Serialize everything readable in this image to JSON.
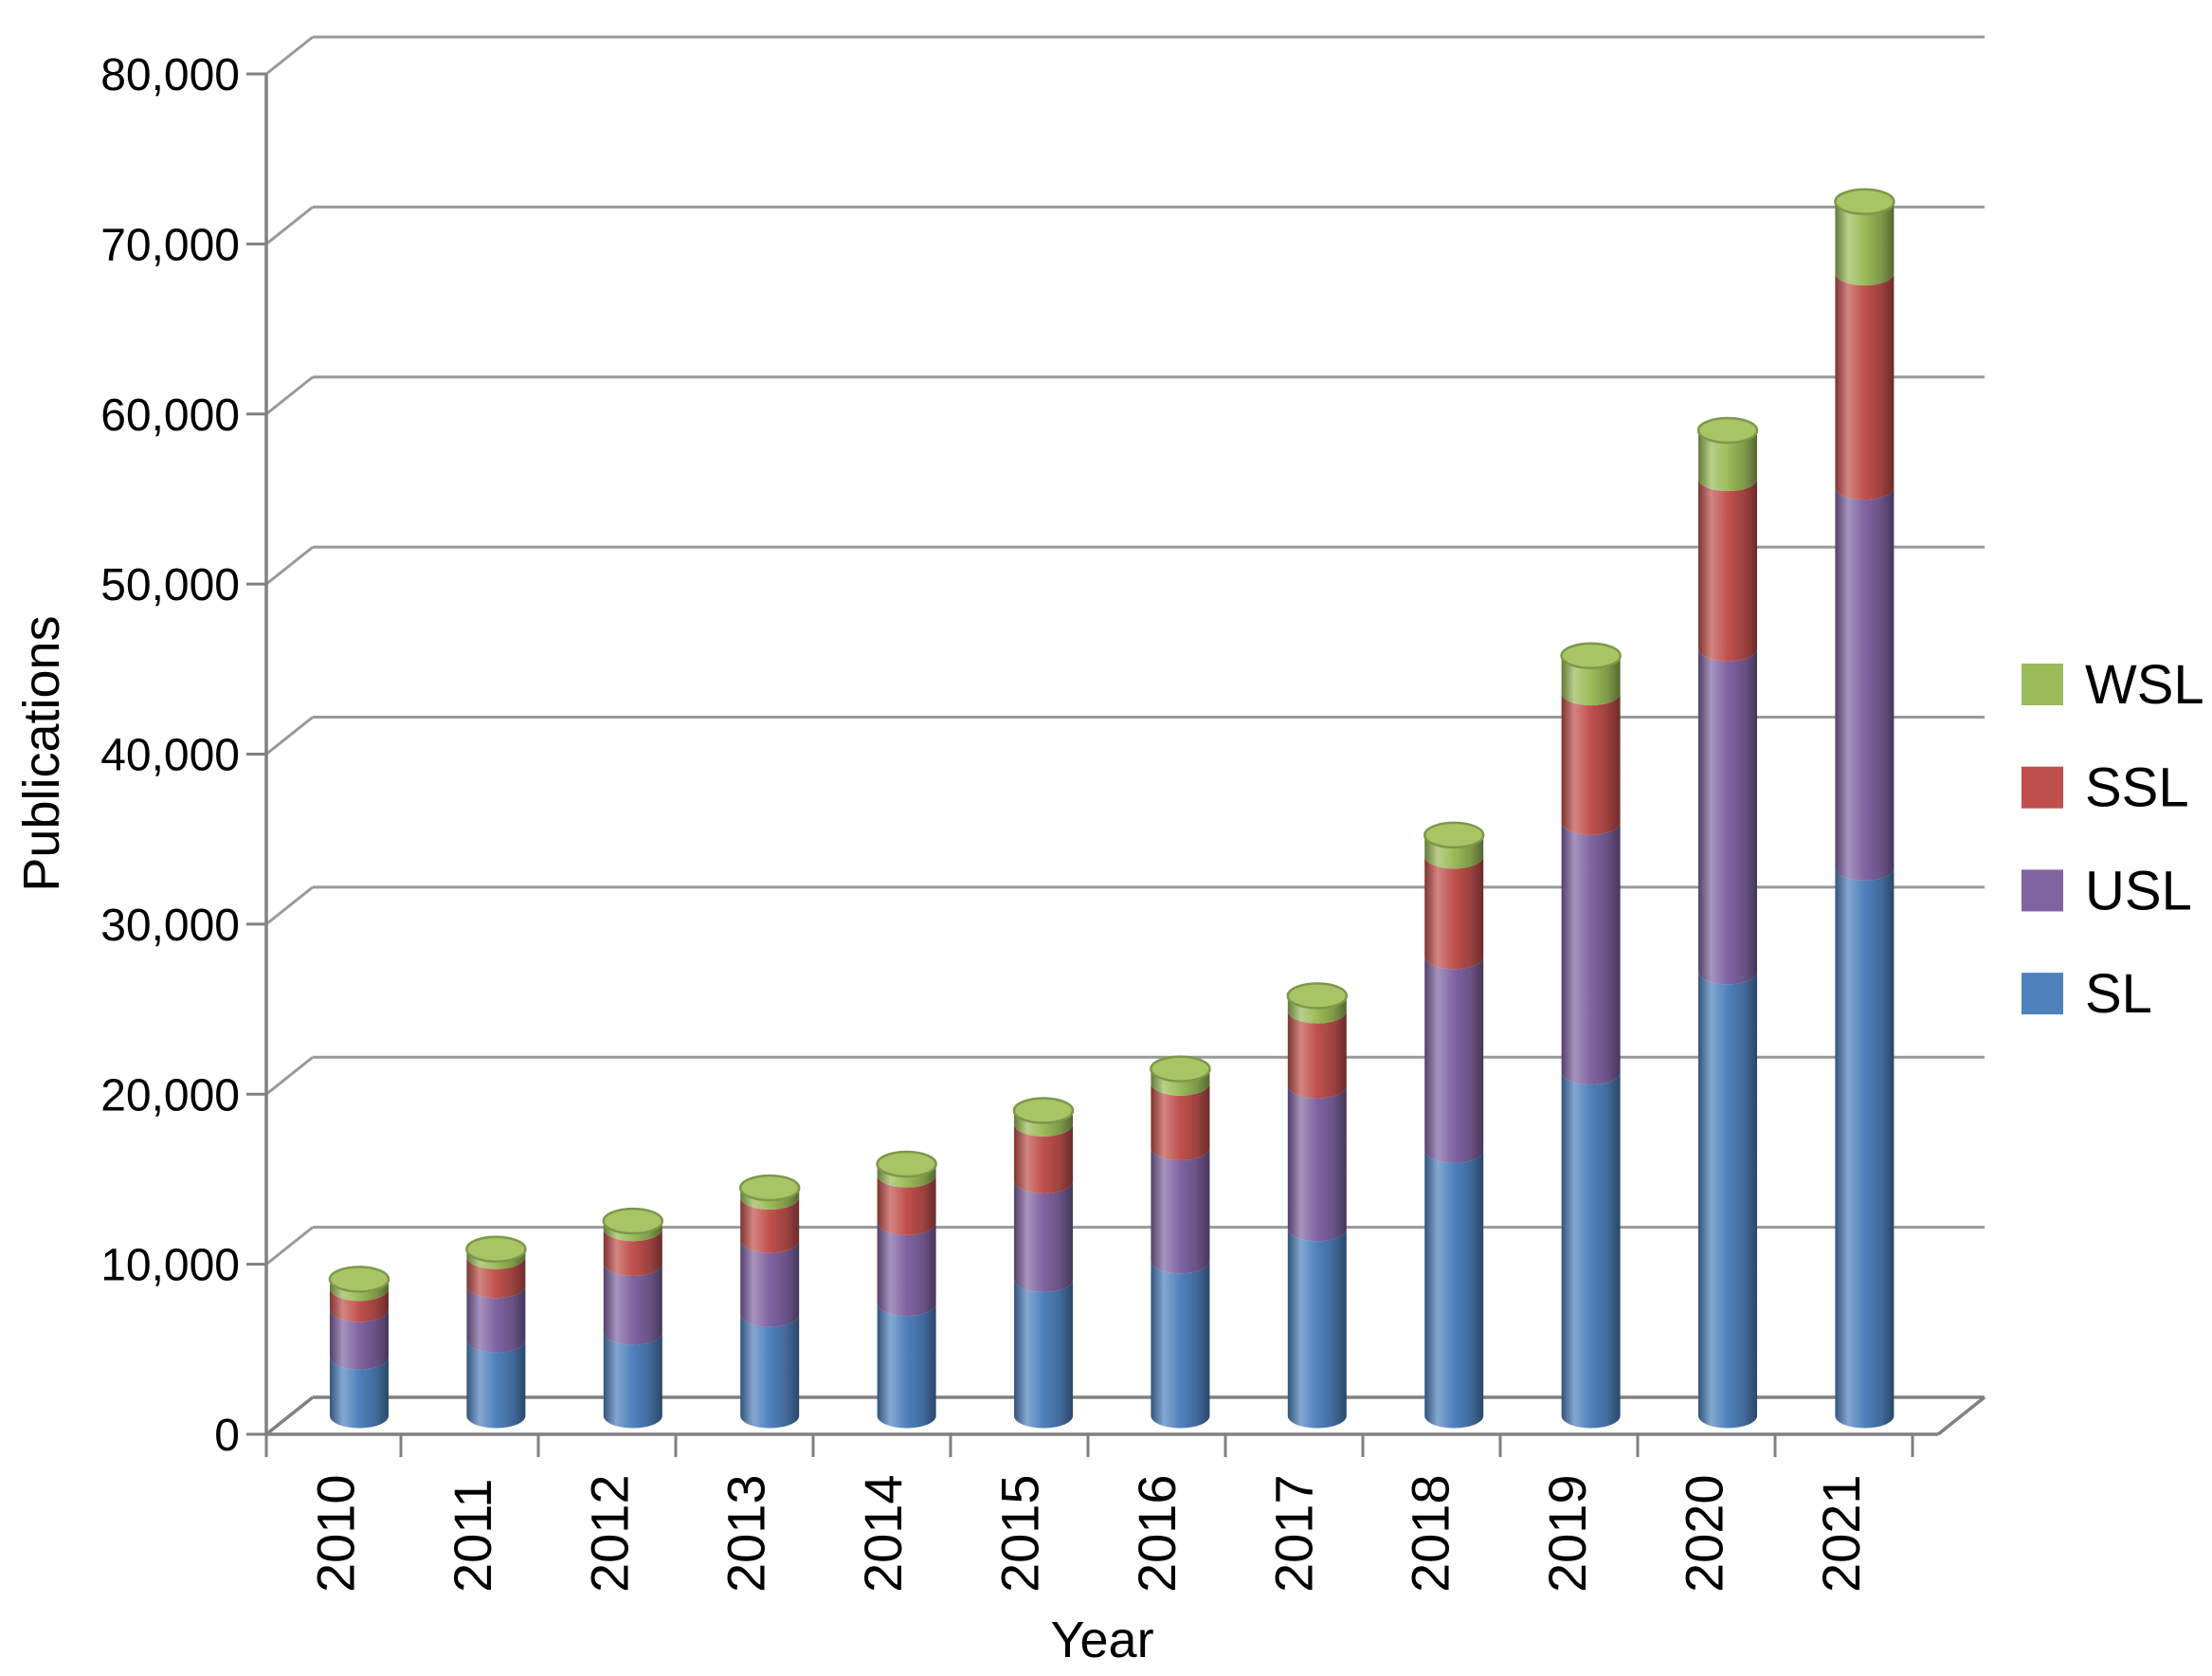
{
  "chart_data": {
    "type": "bar",
    "variant": "3d-stacked-cylinder",
    "title": "",
    "xlabel": "Year",
    "ylabel": "Publications",
    "categories": [
      "2010",
      "2011",
      "2012",
      "2013",
      "2014",
      "2015",
      "2016",
      "2017",
      "2018",
      "2019",
      "2020",
      "2021"
    ],
    "series": [
      {
        "name": "SL",
        "color": "#4F81BD",
        "values": [
          3450,
          4450,
          4900,
          5950,
          6600,
          8000,
          9100,
          11000,
          15600,
          20200,
          26100,
          32200
        ]
      },
      {
        "name": "USL",
        "color": "#8064A2",
        "values": [
          2800,
          3200,
          4050,
          4350,
          4750,
          5800,
          6650,
          8400,
          11400,
          14700,
          19000,
          22400
        ]
      },
      {
        "name": "SSL",
        "color": "#C0504D",
        "values": [
          1230,
          1700,
          2050,
          2550,
          2800,
          3350,
          3800,
          4400,
          5900,
          7600,
          10000,
          12600
        ]
      },
      {
        "name": "WSL",
        "color": "#9BBB59",
        "values": [
          550,
          450,
          450,
          550,
          650,
          800,
          850,
          900,
          1250,
          2200,
          2850,
          4200
        ]
      }
    ],
    "totals": [
      8030,
      9800,
      11450,
      13400,
      14800,
      17950,
      20400,
      24700,
      34150,
      44700,
      57950,
      71400
    ],
    "ylim": [
      0,
      80000
    ],
    "ytick_step": 10000,
    "ytick_labels": [
      "0",
      "10,000",
      "20,000",
      "30,000",
      "40,000",
      "50,000",
      "60,000",
      "70,000",
      "80,000"
    ],
    "grid": true,
    "legend": {
      "position": "right",
      "entries": [
        {
          "label": "WSL",
          "color": "#9BBB59"
        },
        {
          "label": "SSL",
          "color": "#C0504D"
        },
        {
          "label": "USL",
          "color": "#8064A2"
        },
        {
          "label": "SL",
          "color": "#4F81BD"
        }
      ]
    },
    "colors": {
      "gridline": "#999999",
      "axis": "#808080",
      "background": "#FFFFFF",
      "cylinder_cap_fill": "#A8C566",
      "cylinder_cap_stroke": "#7E9749"
    }
  }
}
